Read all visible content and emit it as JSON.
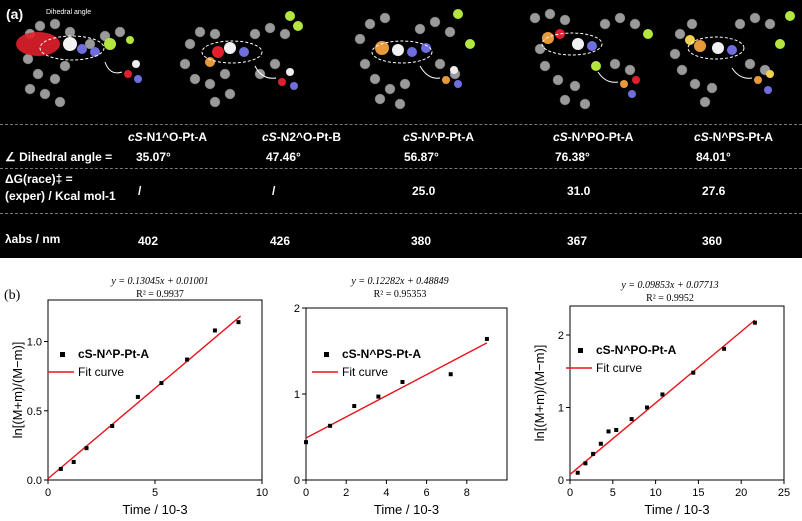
{
  "panel_a": {
    "label": "(a)",
    "annotation": "Dihedral angle",
    "compounds": [
      {
        "prefix": "cS",
        "name": "-N1^O-Pt-A",
        "dihedral": "35.07°",
        "dg": "/",
        "labs": "402"
      },
      {
        "prefix": "cS",
        "name": "-N2^O-Pt-B",
        "dihedral": "47.46°",
        "dg": "/",
        "labs": "426"
      },
      {
        "prefix": "cS",
        "name": "-N^P-Pt-A",
        "dihedral": "56.87°",
        "dg": "25.0",
        "labs": "380"
      },
      {
        "prefix": "cS",
        "name": "-N^PO-Pt-A",
        "dihedral": "76.38°",
        "dg": "31.0",
        "labs": "367"
      },
      {
        "prefix": "cS",
        "name": "-N^PS-Pt-A",
        "dihedral": "84.01°",
        "dg": "27.6",
        "labs": "360"
      }
    ],
    "row_labels": {
      "dihedral": "∠ Dihedral angle =",
      "dg_line1": "ΔG(race)‡ =",
      "dg_line2": "(exper) / Kcal mol-1",
      "labs": "λabs / nm"
    }
  },
  "panel_b": {
    "label": "(b)"
  },
  "chart_data": [
    {
      "type": "scatter",
      "legend": [
        "cS-N^P-Pt-A",
        "Fit curve"
      ],
      "equation": "y = 0.13045x + 0.01001",
      "r2": "R² = 0.9937",
      "xlabel": "Time / 10-3",
      "ylabel": "ln[(M+m)/(M−m)]",
      "xlim": [
        0,
        10
      ],
      "ylim": [
        0,
        1.3
      ],
      "xticks": [
        0,
        5,
        10
      ],
      "yticks": [
        0.0,
        0.5,
        1.0
      ],
      "ytick_labels": [
        "0.0",
        "0.5",
        "1.0"
      ],
      "points": [
        [
          0.6,
          0.08
        ],
        [
          1.2,
          0.13
        ],
        [
          1.8,
          0.23
        ],
        [
          3.0,
          0.39
        ],
        [
          4.2,
          0.6
        ],
        [
          5.3,
          0.7
        ],
        [
          6.5,
          0.87
        ],
        [
          7.8,
          1.08
        ],
        [
          8.9,
          1.14
        ]
      ],
      "fit": {
        "slope": 0.13045,
        "intercept": 0.01001,
        "x_range": [
          0,
          9
        ]
      },
      "colors": {
        "points": "#000000",
        "fit": "#e8141c"
      }
    },
    {
      "type": "scatter",
      "legend": [
        "cS-N^PS-Pt-A",
        "Fit curve"
      ],
      "equation": "y = 0.12282x + 0.48849",
      "r2": "R² = 0.95353",
      "xlabel": "Time / 10-3",
      "ylabel": "",
      "xlim": [
        0,
        10
      ],
      "ylim": [
        0,
        2
      ],
      "xticks": [
        0,
        2,
        4,
        6,
        8
      ],
      "yticks": [
        0,
        1,
        2
      ],
      "ytick_labels": [
        "0",
        "1",
        "2"
      ],
      "points": [
        [
          0.0,
          0.44
        ],
        [
          1.2,
          0.63
        ],
        [
          2.4,
          0.86
        ],
        [
          3.6,
          0.97
        ],
        [
          4.8,
          1.14
        ],
        [
          7.2,
          1.23
        ],
        [
          9.0,
          1.64
        ]
      ],
      "fit": {
        "slope": 0.12282,
        "intercept": 0.48849,
        "x_range": [
          0,
          9
        ]
      },
      "colors": {
        "points": "#000000",
        "fit": "#e8141c"
      }
    },
    {
      "type": "scatter",
      "legend": [
        "cS-N^PO-Pt-A",
        "Fit curve"
      ],
      "equation": "y = 0.09853x + 0.07713",
      "r2": "R² = 0.9952",
      "xlabel": "Time / 10-3",
      "ylabel": "ln[(M+m)/(M−m)]",
      "xlim": [
        0,
        25
      ],
      "ylim": [
        0,
        2.4
      ],
      "xticks": [
        0,
        5,
        10,
        15,
        20,
        25
      ],
      "yticks": [
        0,
        1,
        2
      ],
      "ytick_labels": [
        "0",
        "1",
        "2"
      ],
      "points": [
        [
          0.9,
          0.1
        ],
        [
          1.8,
          0.23
        ],
        [
          2.7,
          0.36
        ],
        [
          3.6,
          0.5
        ],
        [
          4.5,
          0.67
        ],
        [
          5.4,
          0.69
        ],
        [
          7.2,
          0.84
        ],
        [
          9.0,
          1.0
        ],
        [
          10.8,
          1.18
        ],
        [
          14.4,
          1.48
        ],
        [
          18.0,
          1.81
        ],
        [
          21.6,
          2.17
        ]
      ],
      "fit": {
        "slope": 0.09853,
        "intercept": 0.07713,
        "x_range": [
          0,
          21.6
        ]
      },
      "colors": {
        "points": "#000000",
        "fit": "#e8141c"
      }
    }
  ]
}
